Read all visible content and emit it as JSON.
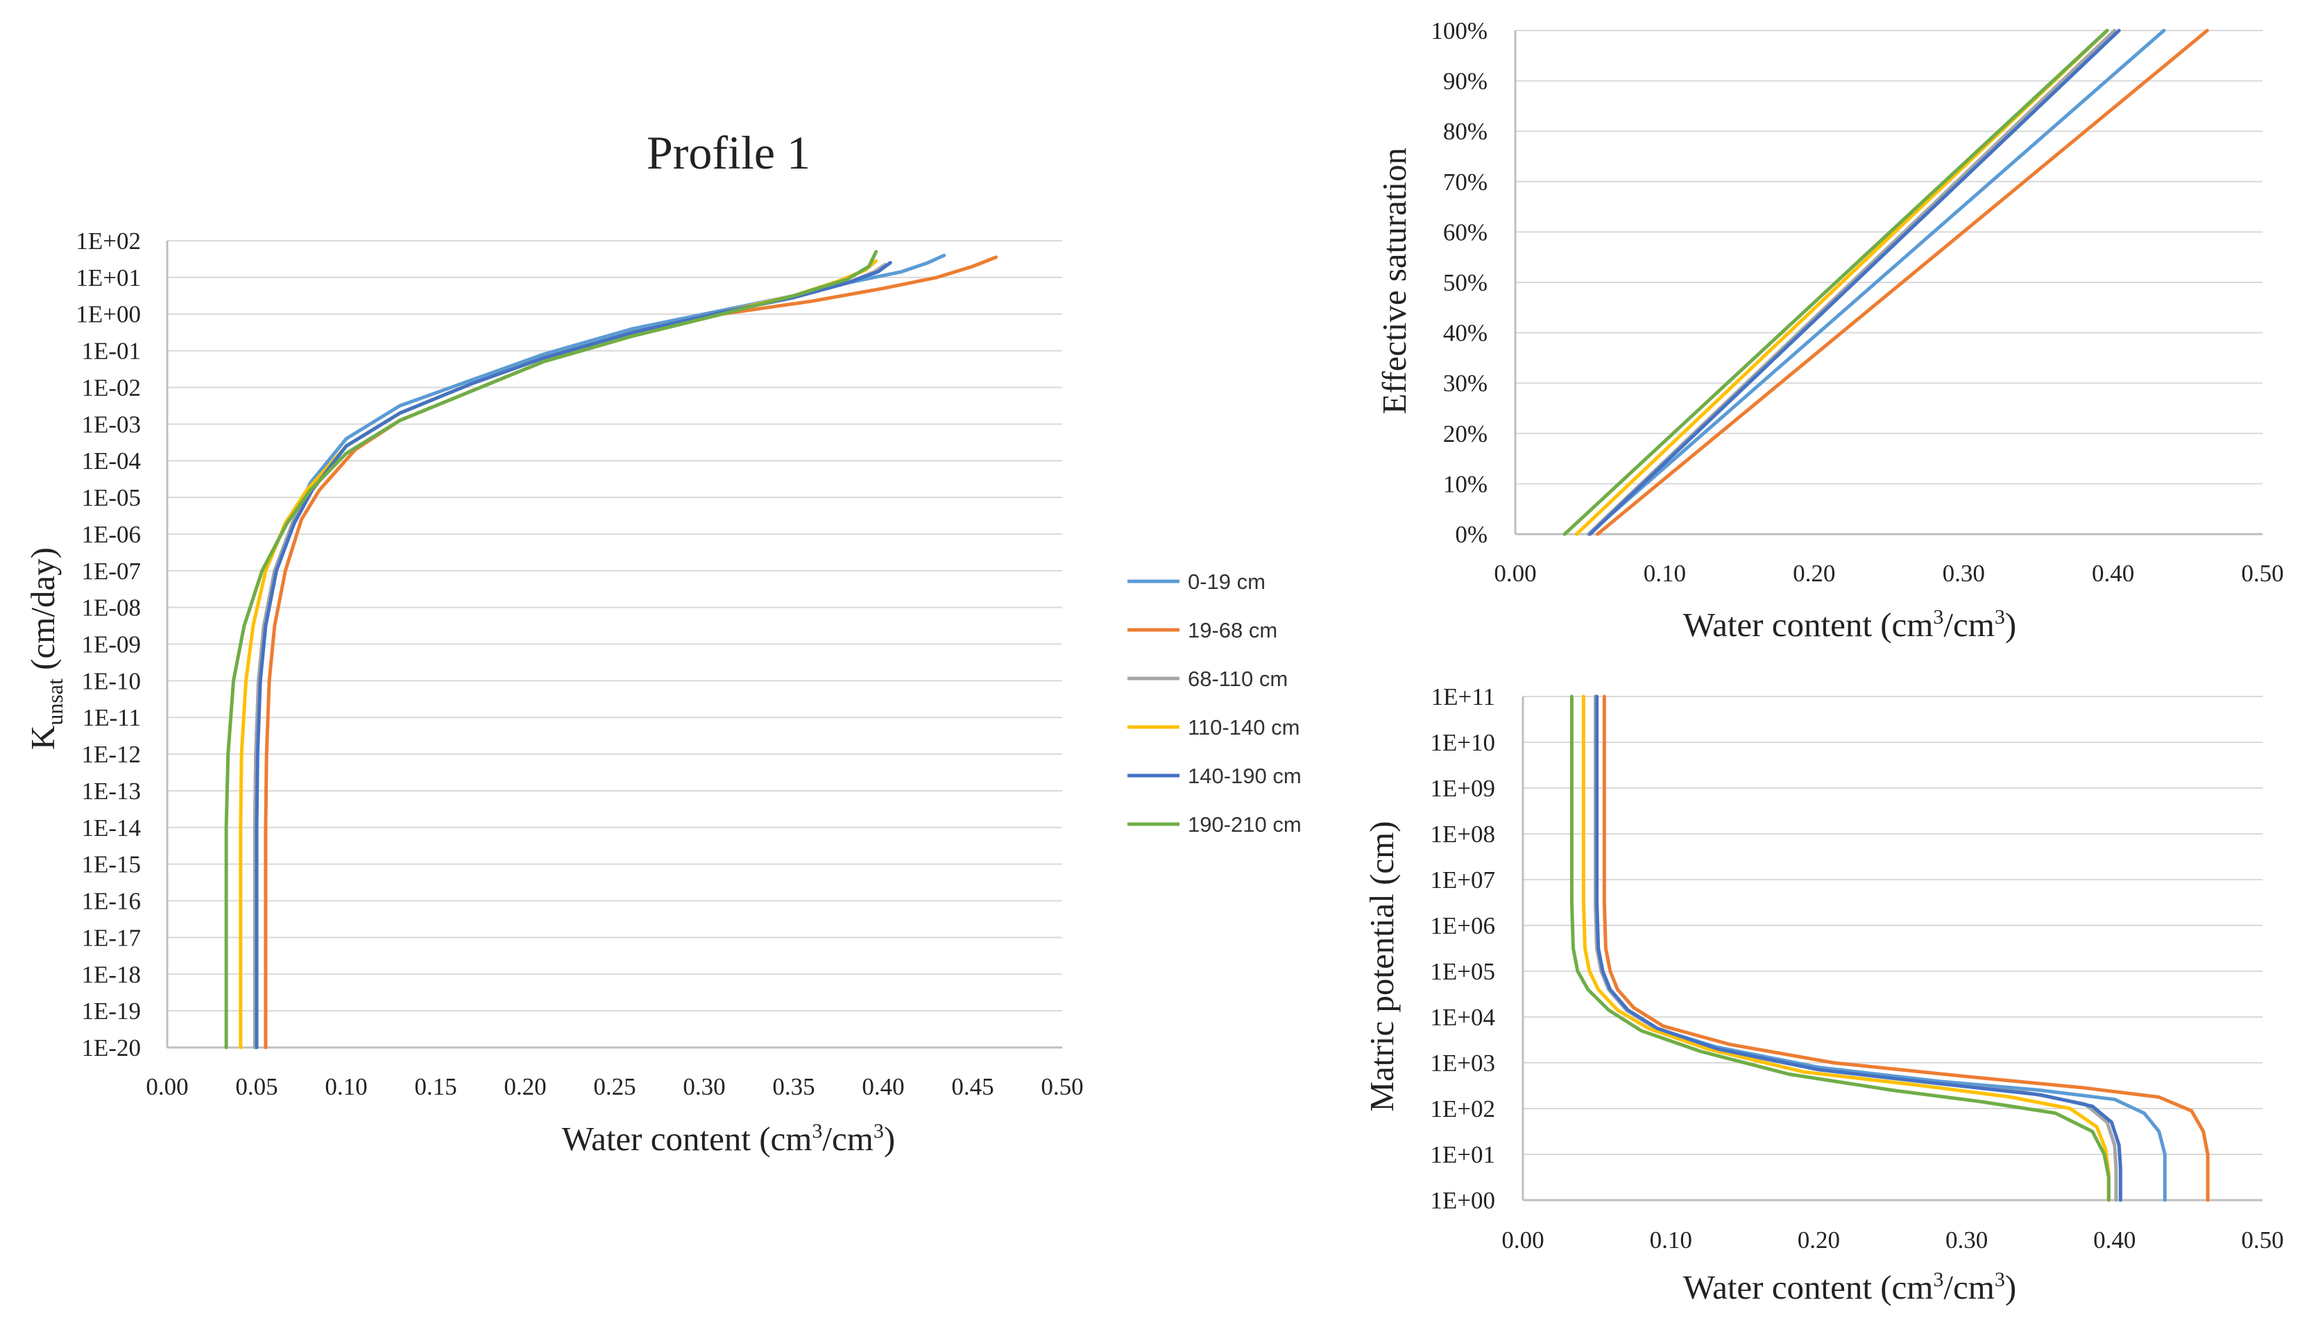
{
  "legend": [
    "0-19 cm",
    "19-68 cm",
    "68-110 cm",
    "110-140 cm",
    "140-190 cm",
    "190-210 cm"
  ],
  "colors": {
    "0-19 cm": "#5b9bd5",
    "19-68 cm": "#ed7d31",
    "68-110 cm": "#a5a5a5",
    "110-140 cm": "#ffc000",
    "140-190 cm": "#4472c4",
    "190-210 cm": "#70ad47"
  },
  "chart_data": [
    {
      "id": "k",
      "type": "line",
      "title": "Profile 1",
      "ylabel_main": "K",
      "ylabel_sub": "unsat",
      "ylabel_rest": " (cm/day)",
      "xlabel_pre": "Water content (cm",
      "xlabel_mid": "/cm",
      "xlabel_post": ")",
      "xlabel_sup": "3",
      "xlim": [
        0,
        0.5
      ],
      "ylim_log10": [
        -20,
        2
      ],
      "xticks": [
        "0.00",
        "0.05",
        "0.10",
        "0.15",
        "0.20",
        "0.25",
        "0.30",
        "0.35",
        "0.40",
        "0.45",
        "0.50"
      ],
      "yticks": [
        "1E-20",
        "1E-19",
        "1E-18",
        "1E-17",
        "1E-16",
        "1E-15",
        "1E-14",
        "1E-13",
        "1E-12",
        "1E-11",
        "1E-10",
        "1E-09",
        "1E-08",
        "1E-07",
        "1E-06",
        "1E-05",
        "1E-04",
        "1E-03",
        "1E-02",
        "1E-01",
        "1E+00",
        "1E+01",
        "1E+02"
      ],
      "series": [
        {
          "name": "0-19 cm",
          "points": [
            [
              0.049,
              -20
            ],
            [
              0.049,
              -14
            ],
            [
              0.0495,
              -12
            ],
            [
              0.051,
              -10
            ],
            [
              0.054,
              -8.5
            ],
            [
              0.06,
              -7
            ],
            [
              0.07,
              -5.7
            ],
            [
              0.08,
              -4.6
            ],
            [
              0.1,
              -3.4
            ],
            [
              0.13,
              -2.5
            ],
            [
              0.17,
              -1.8
            ],
            [
              0.21,
              -1.1
            ],
            [
              0.26,
              -0.4
            ],
            [
              0.31,
              0.1
            ],
            [
              0.35,
              0.5
            ],
            [
              0.38,
              0.85
            ],
            [
              0.41,
              1.15
            ],
            [
              0.425,
              1.4
            ],
            [
              0.434,
              1.6
            ]
          ]
        },
        {
          "name": "19-68 cm",
          "points": [
            [
              0.055,
              -20
            ],
            [
              0.055,
              -14
            ],
            [
              0.0555,
              -12
            ],
            [
              0.057,
              -10
            ],
            [
              0.06,
              -8.5
            ],
            [
              0.066,
              -7
            ],
            [
              0.075,
              -5.6
            ],
            [
              0.085,
              -4.8
            ],
            [
              0.105,
              -3.7
            ],
            [
              0.13,
              -2.9
            ],
            [
              0.17,
              -2.1
            ],
            [
              0.21,
              -1.3
            ],
            [
              0.26,
              -0.6
            ],
            [
              0.31,
              0.0
            ],
            [
              0.36,
              0.35
            ],
            [
              0.4,
              0.7
            ],
            [
              0.43,
              1.0
            ],
            [
              0.45,
              1.3
            ],
            [
              0.463,
              1.55
            ]
          ]
        },
        {
          "name": "68-110 cm",
          "points": [
            [
              0.049,
              -20
            ],
            [
              0.049,
              -14
            ],
            [
              0.0495,
              -12
            ],
            [
              0.051,
              -10
            ],
            [
              0.054,
              -8.5
            ],
            [
              0.06,
              -7
            ],
            [
              0.07,
              -5.7
            ],
            [
              0.08,
              -4.8
            ],
            [
              0.1,
              -3.6
            ],
            [
              0.13,
              -2.7
            ],
            [
              0.17,
              -1.9
            ],
            [
              0.21,
              -1.2
            ],
            [
              0.26,
              -0.5
            ],
            [
              0.31,
              0.05
            ],
            [
              0.35,
              0.45
            ],
            [
              0.38,
              0.85
            ],
            [
              0.395,
              1.15
            ],
            [
              0.401,
              1.35
            ]
          ]
        },
        {
          "name": "110-140 cm",
          "points": [
            [
              0.041,
              -20
            ],
            [
              0.041,
              -14
            ],
            [
              0.0415,
              -12
            ],
            [
              0.044,
              -10
            ],
            [
              0.048,
              -8.5
            ],
            [
              0.055,
              -7
            ],
            [
              0.066,
              -5.7
            ],
            [
              0.078,
              -4.8
            ],
            [
              0.1,
              -3.6
            ],
            [
              0.13,
              -2.7
            ],
            [
              0.17,
              -1.9
            ],
            [
              0.21,
              -1.2
            ],
            [
              0.26,
              -0.5
            ],
            [
              0.31,
              0.05
            ],
            [
              0.35,
              0.5
            ],
            [
              0.375,
              0.9
            ],
            [
              0.39,
              1.2
            ],
            [
              0.396,
              1.45
            ]
          ]
        },
        {
          "name": "140-190 cm",
          "points": [
            [
              0.05,
              -20
            ],
            [
              0.05,
              -14
            ],
            [
              0.0505,
              -12
            ],
            [
              0.052,
              -10
            ],
            [
              0.055,
              -8.5
            ],
            [
              0.061,
              -7
            ],
            [
              0.071,
              -5.7
            ],
            [
              0.081,
              -4.8
            ],
            [
              0.1,
              -3.6
            ],
            [
              0.13,
              -2.7
            ],
            [
              0.17,
              -1.9
            ],
            [
              0.21,
              -1.2
            ],
            [
              0.26,
              -0.5
            ],
            [
              0.31,
              0.05
            ],
            [
              0.35,
              0.45
            ],
            [
              0.38,
              0.85
            ],
            [
              0.397,
              1.15
            ],
            [
              0.404,
              1.4
            ]
          ]
        },
        {
          "name": "190-210 cm",
          "points": [
            [
              0.033,
              -20
            ],
            [
              0.033,
              -14
            ],
            [
              0.034,
              -12
            ],
            [
              0.037,
              -10
            ],
            [
              0.043,
              -8.5
            ],
            [
              0.053,
              -7
            ],
            [
              0.067,
              -5.7
            ],
            [
              0.08,
              -4.8
            ],
            [
              0.1,
              -3.8
            ],
            [
              0.13,
              -2.9
            ],
            [
              0.17,
              -2.1
            ],
            [
              0.21,
              -1.3
            ],
            [
              0.26,
              -0.6
            ],
            [
              0.31,
              0.0
            ],
            [
              0.35,
              0.5
            ],
            [
              0.38,
              0.95
            ],
            [
              0.392,
              1.3
            ],
            [
              0.396,
              1.7
            ]
          ]
        }
      ]
    },
    {
      "id": "se",
      "type": "line",
      "ylabel": "Effective saturation",
      "xlabel_pre": "Water content (cm",
      "xlabel_mid": "/cm",
      "xlabel_post": ")",
      "xlabel_sup": "3",
      "xlim": [
        0,
        0.5
      ],
      "ylim": [
        0,
        100
      ],
      "xticks": [
        "0.00",
        "0.10",
        "0.20",
        "0.30",
        "0.40",
        "0.50"
      ],
      "yticks": [
        "0%",
        "10%",
        "20%",
        "30%",
        "40%",
        "50%",
        "60%",
        "70%",
        "80%",
        "90%",
        "100%"
      ],
      "series": [
        {
          "name": "0-19 cm",
          "points": [
            [
              0.049,
              0
            ],
            [
              0.434,
              100
            ]
          ]
        },
        {
          "name": "19-68 cm",
          "points": [
            [
              0.055,
              0
            ],
            [
              0.463,
              100
            ]
          ]
        },
        {
          "name": "68-110 cm",
          "points": [
            [
              0.049,
              0
            ],
            [
              0.401,
              100
            ]
          ]
        },
        {
          "name": "110-140 cm",
          "points": [
            [
              0.041,
              0
            ],
            [
              0.396,
              100
            ]
          ]
        },
        {
          "name": "140-190 cm",
          "points": [
            [
              0.05,
              0
            ],
            [
              0.404,
              100
            ]
          ]
        },
        {
          "name": "190-210 cm",
          "points": [
            [
              0.033,
              0
            ],
            [
              0.396,
              100
            ]
          ]
        }
      ]
    },
    {
      "id": "mp",
      "type": "line",
      "ylabel": "Matric potential (cm)",
      "xlabel_pre": "Water content (cm",
      "xlabel_mid": "/cm",
      "xlabel_post": ")",
      "xlabel_sup": "3",
      "xlim": [
        0,
        0.5
      ],
      "ylim_log10": [
        0,
        11
      ],
      "xticks": [
        "0.00",
        "0.10",
        "0.20",
        "0.30",
        "0.40",
        "0.50"
      ],
      "yticks": [
        "1E+00",
        "1E+01",
        "1E+02",
        "1E+03",
        "1E+04",
        "1E+05",
        "1E+06",
        "1E+07",
        "1E+08",
        "1E+09",
        "1E+10",
        "1E+11"
      ],
      "series": [
        {
          "name": "0-19 cm",
          "points": [
            [
              0.049,
              11
            ],
            [
              0.049,
              6.5
            ],
            [
              0.05,
              5.5
            ],
            [
              0.053,
              5
            ],
            [
              0.058,
              4.6
            ],
            [
              0.07,
              4.15
            ],
            [
              0.09,
              3.75
            ],
            [
              0.13,
              3.35
            ],
            [
              0.2,
              2.9
            ],
            [
              0.28,
              2.6
            ],
            [
              0.35,
              2.4
            ],
            [
              0.4,
              2.2
            ],
            [
              0.42,
              1.9
            ],
            [
              0.43,
              1.5
            ],
            [
              0.434,
              1.0
            ],
            [
              0.434,
              0
            ]
          ]
        },
        {
          "name": "19-68 cm",
          "points": [
            [
              0.055,
              11
            ],
            [
              0.055,
              6.5
            ],
            [
              0.056,
              5.5
            ],
            [
              0.059,
              5
            ],
            [
              0.064,
              4.6
            ],
            [
              0.075,
              4.2
            ],
            [
              0.095,
              3.8
            ],
            [
              0.14,
              3.4
            ],
            [
              0.21,
              3.0
            ],
            [
              0.3,
              2.7
            ],
            [
              0.38,
              2.45
            ],
            [
              0.43,
              2.25
            ],
            [
              0.452,
              1.95
            ],
            [
              0.46,
              1.5
            ],
            [
              0.463,
              1.0
            ],
            [
              0.463,
              0
            ]
          ]
        },
        {
          "name": "68-110 cm",
          "points": [
            [
              0.049,
              11
            ],
            [
              0.049,
              6.5
            ],
            [
              0.05,
              5.5
            ],
            [
              0.053,
              5
            ],
            [
              0.058,
              4.6
            ],
            [
              0.07,
              4.15
            ],
            [
              0.09,
              3.75
            ],
            [
              0.13,
              3.3
            ],
            [
              0.2,
              2.85
            ],
            [
              0.28,
              2.55
            ],
            [
              0.34,
              2.35
            ],
            [
              0.38,
              2.1
            ],
            [
              0.395,
              1.7
            ],
            [
              0.4,
              1.2
            ],
            [
              0.401,
              0.7
            ],
            [
              0.401,
              0
            ]
          ]
        },
        {
          "name": "110-140 cm",
          "points": [
            [
              0.041,
              11
            ],
            [
              0.041,
              6.5
            ],
            [
              0.042,
              5.5
            ],
            [
              0.045,
              5
            ],
            [
              0.051,
              4.6
            ],
            [
              0.064,
              4.15
            ],
            [
              0.085,
              3.75
            ],
            [
              0.125,
              3.3
            ],
            [
              0.19,
              2.8
            ],
            [
              0.27,
              2.5
            ],
            [
              0.33,
              2.25
            ],
            [
              0.37,
              2.0
            ],
            [
              0.388,
              1.6
            ],
            [
              0.394,
              1.1
            ],
            [
              0.396,
              0.6
            ],
            [
              0.396,
              0
            ]
          ]
        },
        {
          "name": "140-190 cm",
          "points": [
            [
              0.05,
              11
            ],
            [
              0.05,
              6.5
            ],
            [
              0.051,
              5.5
            ],
            [
              0.054,
              5
            ],
            [
              0.059,
              4.6
            ],
            [
              0.071,
              4.15
            ],
            [
              0.091,
              3.75
            ],
            [
              0.132,
              3.3
            ],
            [
              0.2,
              2.85
            ],
            [
              0.28,
              2.55
            ],
            [
              0.35,
              2.3
            ],
            [
              0.385,
              2.05
            ],
            [
              0.398,
              1.7
            ],
            [
              0.403,
              1.2
            ],
            [
              0.404,
              0.7
            ],
            [
              0.404,
              0
            ]
          ]
        },
        {
          "name": "190-210 cm",
          "points": [
            [
              0.033,
              11
            ],
            [
              0.033,
              6.5
            ],
            [
              0.034,
              5.5
            ],
            [
              0.037,
              5
            ],
            [
              0.044,
              4.6
            ],
            [
              0.058,
              4.15
            ],
            [
              0.08,
              3.7
            ],
            [
              0.12,
              3.25
            ],
            [
              0.18,
              2.75
            ],
            [
              0.25,
              2.4
            ],
            [
              0.31,
              2.15
            ],
            [
              0.36,
              1.9
            ],
            [
              0.385,
              1.5
            ],
            [
              0.393,
              1.0
            ],
            [
              0.396,
              0.5
            ],
            [
              0.396,
              0
            ]
          ]
        }
      ]
    }
  ]
}
